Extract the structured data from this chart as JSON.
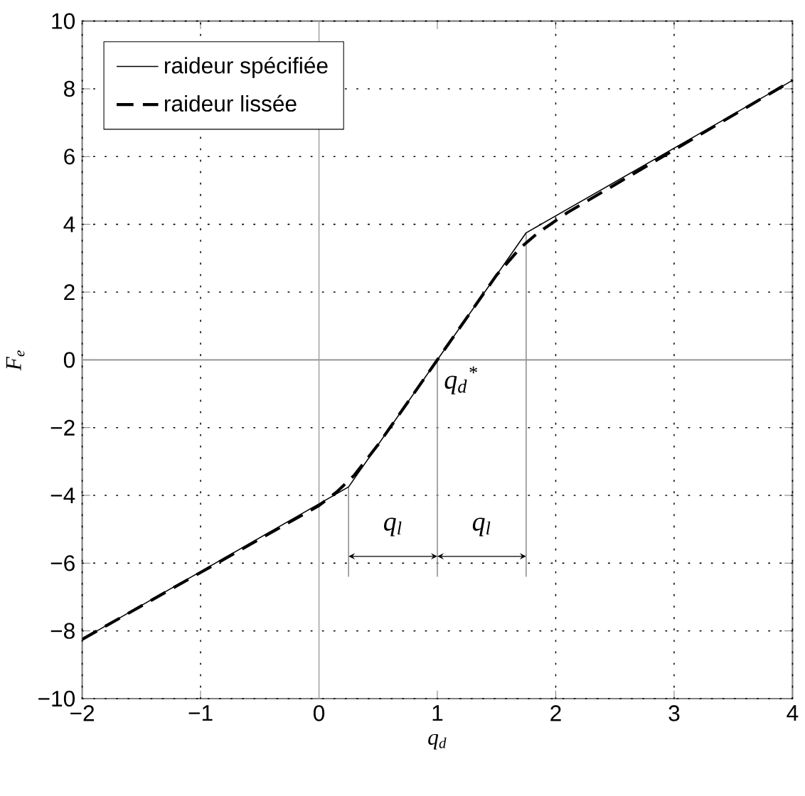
{
  "chart_data": {
    "type": "line",
    "xlabel": "q$_{d}$",
    "ylabel": "F$_{e}$",
    "series": [
      {
        "name": "raideur spécifiée",
        "color": "#000000",
        "line_style": "solid",
        "x": [
          -2,
          0.25,
          1.75,
          4
        ],
        "values": [
          -8.25,
          -3.75,
          3.75,
          8.25
        ]
      },
      {
        "name": "raideur lissée",
        "color": "#000000",
        "line_style": "dashed",
        "x": [
          -2,
          0,
          0.15,
          0.3,
          0.5,
          1.5,
          1.7,
          1.85,
          2.1,
          4
        ],
        "values": [
          -8.25,
          -4.3,
          -3.9,
          -3.4,
          -2.5,
          2.5,
          3.3,
          3.75,
          4.35,
          8.25
        ]
      }
    ],
    "xlim": [
      -2,
      4
    ],
    "ylim": [
      -10,
      10
    ],
    "xticks": [
      {
        "value": -2,
        "label": "−2"
      },
      {
        "value": -1,
        "label": "−1"
      },
      0,
      1,
      2,
      3,
      4
    ],
    "yticks": [
      {
        "value": -10,
        "label": "−10"
      },
      {
        "value": -8,
        "label": "−8"
      },
      {
        "value": -6,
        "label": "−6"
      },
      {
        "value": -4,
        "label": "−4"
      },
      {
        "value": -2,
        "label": "−2"
      },
      0,
      2,
      4,
      6,
      8,
      10
    ],
    "grid": true,
    "legend": "top left",
    "ref_lines": [
      {
        "axis": "x",
        "value": 0,
        "color": "#a0a0a0"
      },
      {
        "axis": "y",
        "value": 0,
        "color": "#a0a0a0"
      },
      {
        "axis": "x",
        "value": 0.25,
        "color": "#909090"
      },
      {
        "axis": "x",
        "value": 1,
        "color": "#909090"
      },
      {
        "axis": "x",
        "value": 1.75,
        "color": "#909090"
      }
    ],
    "annotations": [
      {
        "text": "q$_{d}$$^{*}$",
        "x": 1,
        "y": 0
      },
      "q$_{l}$",
      "q$_{l}$"
    ]
  }
}
